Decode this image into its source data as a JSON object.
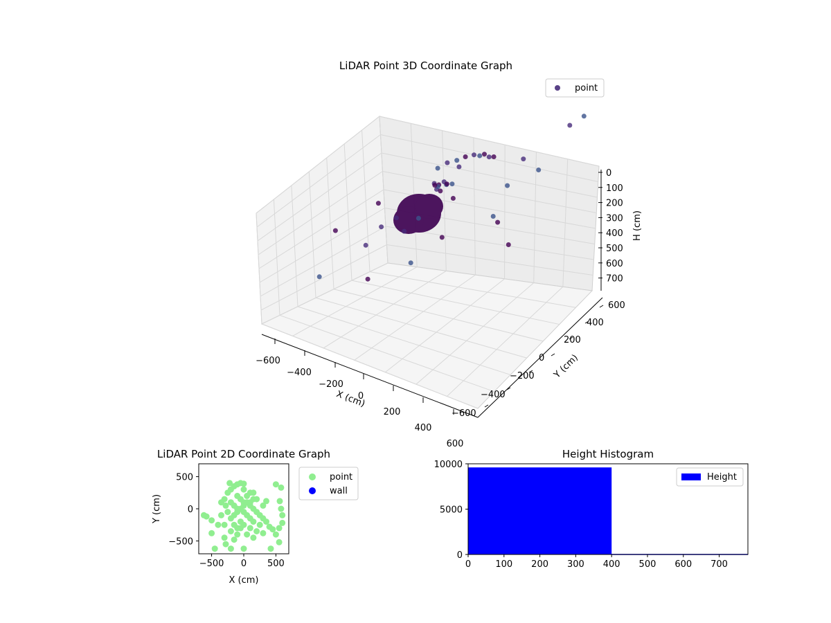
{
  "chart_data": [
    {
      "id": "scatter3d",
      "type": "scatter",
      "title": "LiDAR Point 3D Coordinate Graph",
      "xlabel": "X (cm)",
      "ylabel": "Y (cm)",
      "zlabel": "H (cm)",
      "x_ticks": [
        "−600",
        "−400",
        "−200",
        "0",
        "200",
        "400",
        "600"
      ],
      "y_ticks": [
        "−600",
        "−400",
        "−200",
        "0",
        "200",
        "400",
        "600"
      ],
      "z_ticks": [
        "0",
        "100",
        "200",
        "300",
        "400",
        "500",
        "600",
        "700"
      ],
      "xlim": [
        -650,
        650
      ],
      "ylim": [
        -700,
        650
      ],
      "zlim": [
        0,
        800
      ],
      "z_inverted": true,
      "grid": true,
      "legend": {
        "placement": "top-right",
        "entries": [
          {
            "label": "point",
            "color": "#472c7a"
          }
        ]
      },
      "colormap": "viridis",
      "series": [
        {
          "name": "point",
          "points": [
            [
              -30,
              60,
              300
            ],
            [
              -10,
              80,
              290
            ],
            [
              10,
              70,
              310
            ],
            [
              30,
              40,
              300
            ],
            [
              -20,
              20,
              320
            ],
            [
              0,
              0,
              300
            ],
            [
              20,
              -10,
              330
            ],
            [
              -40,
              30,
              280
            ],
            [
              50,
              60,
              310
            ],
            [
              -60,
              70,
              300
            ],
            [
              -120,
              300,
              210
            ],
            [
              -80,
              330,
              210
            ],
            [
              -40,
              350,
              200
            ],
            [
              0,
              370,
              200
            ],
            [
              40,
              360,
              210
            ],
            [
              80,
              340,
              200
            ],
            [
              120,
              320,
              220
            ],
            [
              -160,
              270,
              230
            ],
            [
              160,
              300,
              220
            ],
            [
              -20,
              250,
              240
            ],
            [
              300,
              200,
              420
            ],
            [
              -300,
              -100,
              320
            ],
            [
              -400,
              100,
              500
            ],
            [
              400,
              350,
              380
            ],
            [
              200,
              -300,
              600
            ],
            [
              -200,
              -400,
              520
            ],
            [
              100,
              -450,
              700
            ],
            [
              -500,
              -200,
              420
            ],
            [
              500,
              500,
              120
            ],
            [
              550,
              560,
              80
            ],
            [
              300,
              100,
              650
            ],
            [
              -350,
              250,
              580
            ],
            [
              0,
              -200,
              450
            ],
            [
              150,
              -100,
              380
            ],
            [
              -250,
              0,
              450
            ],
            [
              420,
              -150,
              560
            ],
            [
              -100,
              -550,
              720
            ],
            [
              250,
              450,
              300
            ],
            [
              -450,
              -450,
              640
            ],
            [
              600,
              -300,
              780
            ]
          ]
        }
      ]
    },
    {
      "id": "scatter2d",
      "type": "scatter",
      "title": "LiDAR Point 2D Coordinate Graph",
      "xlabel": "X (cm)",
      "ylabel": "Y (cm)",
      "x_ticks": [
        -500,
        0,
        500
      ],
      "y_ticks": [
        -500,
        0,
        500
      ],
      "xlim": [
        -700,
        700
      ],
      "ylim": [
        -700,
        700
      ],
      "legend": {
        "placement": "outside-right",
        "entries": [
          {
            "label": "point",
            "color": "#90ee90"
          },
          {
            "label": "wall",
            "color": "#0000ff"
          }
        ]
      },
      "series": [
        {
          "name": "point",
          "color": "#90ee90",
          "points": [
            [
              -200,
              300
            ],
            [
              -150,
              350
            ],
            [
              -100,
              380
            ],
            [
              -50,
              400
            ],
            [
              0,
              390
            ],
            [
              -250,
              250
            ],
            [
              -300,
              150
            ],
            [
              -280,
              50
            ],
            [
              -250,
              -50
            ],
            [
              -200,
              -150
            ],
            [
              -150,
              -100
            ],
            [
              -100,
              -50
            ],
            [
              -50,
              0
            ],
            [
              0,
              50
            ],
            [
              50,
              100
            ],
            [
              100,
              50
            ],
            [
              150,
              0
            ],
            [
              200,
              -50
            ],
            [
              250,
              -100
            ],
            [
              300,
              -150
            ],
            [
              -100,
              200
            ],
            [
              -50,
              150
            ],
            [
              0,
              100
            ],
            [
              50,
              200
            ],
            [
              100,
              250
            ],
            [
              -200,
              100
            ],
            [
              -150,
              50
            ],
            [
              -100,
              0
            ],
            [
              0,
              -50
            ],
            [
              50,
              -100
            ],
            [
              100,
              -150
            ],
            [
              150,
              -200
            ],
            [
              -50,
              -200
            ],
            [
              0,
              -250
            ],
            [
              -100,
              -300
            ],
            [
              -200,
              -350
            ],
            [
              -300,
              -250
            ],
            [
              -350,
              -100
            ],
            [
              -350,
              100
            ],
            [
              100,
              100
            ],
            [
              150,
              150
            ],
            [
              -620,
              -100
            ],
            [
              -580,
              -120
            ],
            [
              -500,
              -180
            ],
            [
              -500,
              -380
            ],
            [
              -450,
              -620
            ],
            [
              -400,
              -250
            ],
            [
              -300,
              -450
            ],
            [
              -280,
              -550
            ],
            [
              -200,
              -620
            ],
            [
              -150,
              -480
            ],
            [
              -100,
              -400
            ],
            [
              -50,
              -300
            ],
            [
              0,
              -620
            ],
            [
              50,
              -400
            ],
            [
              100,
              -300
            ],
            [
              150,
              -450
            ],
            [
              200,
              -350
            ],
            [
              250,
              -250
            ],
            [
              300,
              -380
            ],
            [
              350,
              -200
            ],
            [
              400,
              -280
            ],
            [
              450,
              -320
            ],
            [
              500,
              -400
            ],
            [
              550,
              -300
            ],
            [
              550,
              -520
            ],
            [
              600,
              -220
            ],
            [
              600,
              -100
            ],
            [
              580,
              0
            ],
            [
              560,
              120
            ],
            [
              500,
              380
            ],
            [
              580,
              330
            ],
            [
              420,
              -620
            ],
            [
              350,
              120
            ],
            [
              300,
              50
            ],
            [
              0,
              300
            ],
            [
              -220,
              400
            ],
            [
              200,
              150
            ],
            [
              150,
              250
            ],
            [
              -150,
              -250
            ]
          ]
        }
      ]
    },
    {
      "id": "histogram",
      "type": "bar",
      "title": "Height Histogram",
      "x_ticks": [
        0,
        100,
        200,
        300,
        400,
        500,
        600,
        700
      ],
      "y_ticks": [
        0,
        5000,
        10000
      ],
      "xlim": [
        0,
        780
      ],
      "ylim": [
        0,
        10000
      ],
      "legend": {
        "placement": "top-right",
        "entries": [
          {
            "label": "Height",
            "color": "#0000ff"
          }
        ]
      },
      "series": [
        {
          "name": "Height",
          "color": "#0000ff",
          "bins": [
            [
              0,
              400,
              9600
            ],
            [
              400,
              780,
              60
            ]
          ]
        }
      ]
    }
  ]
}
